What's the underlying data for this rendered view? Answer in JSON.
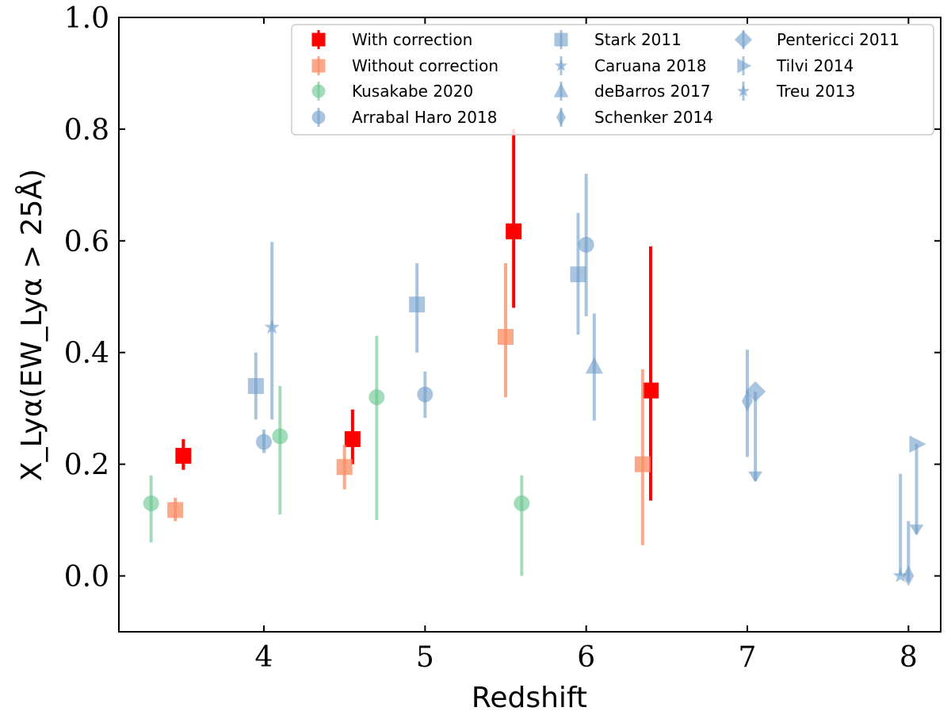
{
  "chart_data": {
    "type": "scatter",
    "xlabel": "Redshift",
    "ylabel": "X_Lyα(EW_Lyα > 25Å)",
    "xlim": [
      3.1,
      8.2
    ],
    "ylim": [
      -0.1,
      1.0
    ],
    "x_ticks": [
      4,
      5,
      6,
      7,
      8
    ],
    "y_ticks": [
      0.0,
      0.2,
      0.4,
      0.6,
      0.8,
      1.0
    ],
    "x_tick_labels": [
      "4",
      "5",
      "6",
      "7",
      "8"
    ],
    "y_tick_labels": [
      "0.0",
      "0.2",
      "0.4",
      "0.6",
      "0.8",
      "1.0"
    ],
    "legend_position": "top-right",
    "grid": false,
    "series": [
      {
        "name": "With correction",
        "marker": "square",
        "color": "#ff0000",
        "opacity": 1.0,
        "points": [
          {
            "x": 3.5,
            "y": 0.215,
            "ylo": 0.19,
            "yhi": 0.245
          },
          {
            "x": 4.55,
            "y": 0.245,
            "ylo": 0.2,
            "yhi": 0.298
          },
          {
            "x": 5.55,
            "y": 0.617,
            "ylo": 0.48,
            "yhi": 0.8
          },
          {
            "x": 6.4,
            "y": 0.332,
            "ylo": 0.135,
            "yhi": 0.59
          }
        ]
      },
      {
        "name": "Without correction",
        "marker": "square",
        "color": "#fa8c64",
        "opacity": 0.75,
        "points": [
          {
            "x": 3.45,
            "y": 0.118,
            "ylo": 0.098,
            "yhi": 0.14
          },
          {
            "x": 4.5,
            "y": 0.195,
            "ylo": 0.155,
            "yhi": 0.235
          },
          {
            "x": 5.5,
            "y": 0.428,
            "ylo": 0.32,
            "yhi": 0.56
          },
          {
            "x": 6.35,
            "y": 0.2,
            "ylo": 0.055,
            "yhi": 0.37
          }
        ]
      },
      {
        "name": "Kusakabe 2020",
        "marker": "circle",
        "color": "#66c48c",
        "opacity": 0.6,
        "points": [
          {
            "x": 3.3,
            "y": 0.13,
            "ylo": 0.06,
            "yhi": 0.18
          },
          {
            "x": 4.1,
            "y": 0.25,
            "ylo": 0.11,
            "yhi": 0.34
          },
          {
            "x": 4.7,
            "y": 0.32,
            "ylo": 0.1,
            "yhi": 0.43
          },
          {
            "x": 5.6,
            "y": 0.13,
            "ylo": 0.0,
            "yhi": 0.18
          }
        ]
      },
      {
        "name": "Arrabal Haro 2018",
        "marker": "circle",
        "color": "#6f9cc8",
        "opacity": 0.6,
        "points": [
          {
            "x": 4.0,
            "y": 0.24,
            "ylo": 0.22,
            "yhi": 0.262
          },
          {
            "x": 5.0,
            "y": 0.325,
            "ylo": 0.283,
            "yhi": 0.366
          },
          {
            "x": 6.0,
            "y": 0.593,
            "ylo": 0.465,
            "yhi": 0.72
          }
        ]
      },
      {
        "name": "Stark 2011",
        "marker": "square",
        "color": "#6f9cc8",
        "opacity": 0.6,
        "points": [
          {
            "x": 3.95,
            "y": 0.34,
            "ylo": 0.28,
            "yhi": 0.4
          },
          {
            "x": 4.95,
            "y": 0.486,
            "ylo": 0.4,
            "yhi": 0.56
          },
          {
            "x": 5.95,
            "y": 0.54,
            "ylo": 0.432,
            "yhi": 0.65
          }
        ]
      },
      {
        "name": "Caruana 2018",
        "marker": "star",
        "color": "#6f9cc8",
        "opacity": 0.6,
        "points": [
          {
            "x": 4.05,
            "y": 0.445,
            "ylo": 0.28,
            "yhi": 0.598
          }
        ]
      },
      {
        "name": "deBarros 2017",
        "marker": "triangle-up",
        "color": "#6f9cc8",
        "opacity": 0.6,
        "points": [
          {
            "x": 6.05,
            "y": 0.375,
            "ylo": 0.278,
            "yhi": 0.47
          }
        ]
      },
      {
        "name": "Schenker 2014",
        "marker": "thin-diamond",
        "color": "#6f9cc8",
        "opacity": 0.6,
        "points": [
          {
            "x": 7.0,
            "y": 0.313,
            "ylo": 0.213,
            "yhi": 0.405
          },
          {
            "x": 8.0,
            "y": 0.0,
            "ylo": -0.01,
            "yhi": 0.098
          }
        ]
      },
      {
        "name": "Pentericci 2011",
        "marker": "diamond",
        "color": "#6f9cc8",
        "opacity": 0.6,
        "points": [
          {
            "x": 7.05,
            "y": 0.33,
            "upper_limit_to": 0.17
          }
        ]
      },
      {
        "name": "Tilvi 2014",
        "marker": "triangle-right",
        "color": "#6f9cc8",
        "opacity": 0.6,
        "points": [
          {
            "x": 8.05,
            "y": 0.236,
            "upper_limit_to": 0.075
          }
        ]
      },
      {
        "name": "Treu 2013",
        "marker": "star",
        "color": "#6f9cc8",
        "opacity": 0.6,
        "points": [
          {
            "x": 7.95,
            "y": 0.0,
            "ylo": 0.0,
            "yhi": 0.183
          }
        ]
      }
    ]
  }
}
